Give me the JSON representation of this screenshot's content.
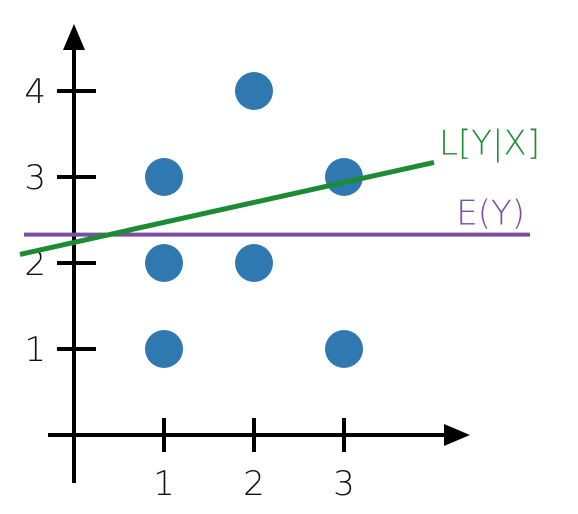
{
  "chart_data": {
    "type": "scatter",
    "title": "",
    "xlabel": "",
    "ylabel": "",
    "xlim": [
      0,
      4
    ],
    "ylim": [
      0,
      4.5
    ],
    "grid": false,
    "x_ticks": [
      "1",
      "2",
      "3"
    ],
    "y_ticks": [
      "1",
      "2",
      "3",
      "4"
    ],
    "points": [
      {
        "x": 1,
        "y": 1
      },
      {
        "x": 1,
        "y": 2
      },
      {
        "x": 1,
        "y": 3
      },
      {
        "x": 2,
        "y": 2
      },
      {
        "x": 2,
        "y": 4
      },
      {
        "x": 3,
        "y": 1
      },
      {
        "x": 3,
        "y": 3
      }
    ],
    "lines": [
      {
        "label": "E(Y)",
        "color": "#7a4ea2",
        "kind": "horizontal",
        "y": 2.33
      },
      {
        "label": "L[Y|X]",
        "color": "#1d8a34",
        "kind": "linear",
        "x": [
          -0.6,
          4.0
        ],
        "y": [
          2.1,
          3.17
        ]
      }
    ],
    "point_color": "#2f78b0",
    "axis_color": "#000000"
  }
}
